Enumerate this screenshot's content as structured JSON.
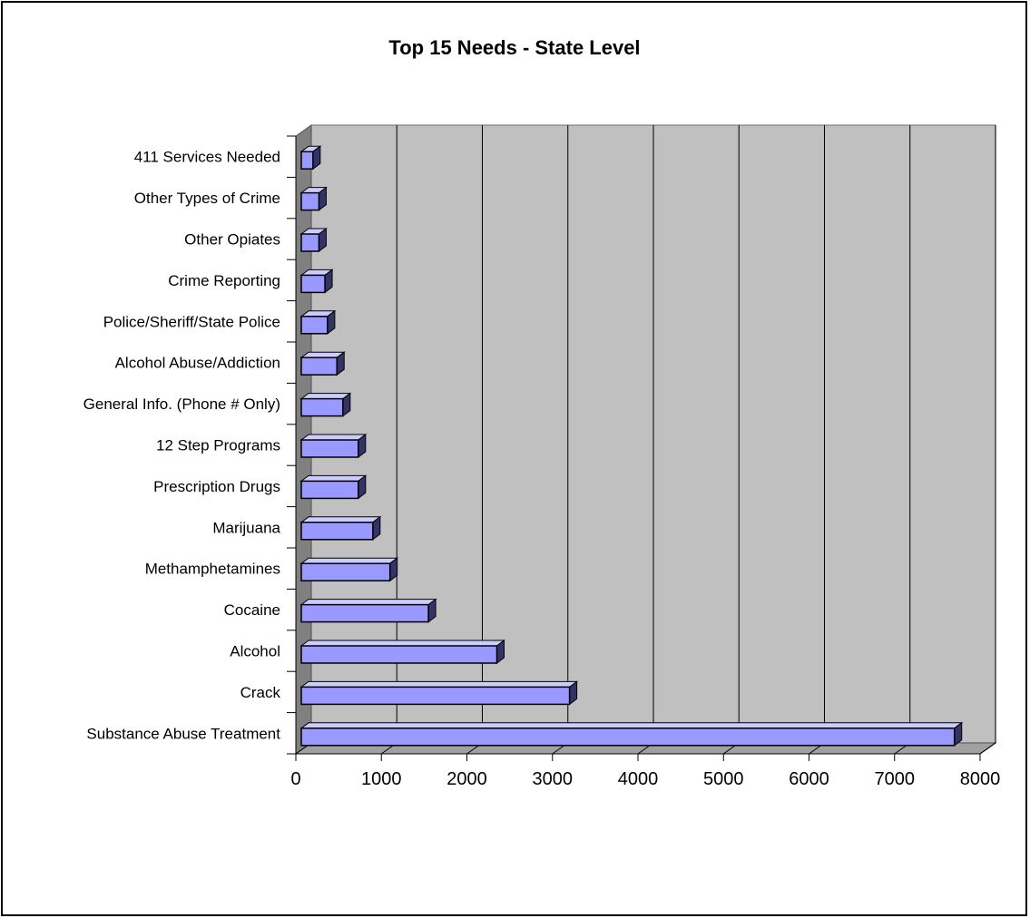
{
  "chart_data": {
    "type": "bar",
    "orientation": "horizontal",
    "style": "3d",
    "title": "Top 15 Needs - State Level",
    "xlabel": "",
    "ylabel": "",
    "xlim": [
      0,
      8000
    ],
    "x_ticks": [
      "0",
      "1000",
      "2000",
      "3000",
      "4000",
      "5000",
      "6000",
      "7000",
      "8000"
    ],
    "grid": "vertical",
    "legend": "none",
    "categories": [
      "Substance Abuse Treatment",
      "Crack",
      "Alcohol",
      "Cocaine",
      "Methamphetamines",
      "Marijuana",
      "Prescription Drugs",
      "12 Step Programs",
      "General Info. (Phone # Only)",
      "Alcohol Abuse/Addiction",
      "Police/Sheriff/State Police",
      "Crime Reporting",
      "Other Opiates",
      "Other Types of Crime",
      "411 Services Needed"
    ],
    "values": [
      7700,
      3200,
      2350,
      1550,
      1100,
      900,
      730,
      730,
      550,
      480,
      370,
      340,
      270,
      270,
      200
    ],
    "colors": {
      "bar_face": "#9999ff",
      "bar_top": "#ccccff",
      "bar_side": "#333366",
      "plot_back": "#c0c0c0",
      "plot_wall": "#808080"
    }
  }
}
